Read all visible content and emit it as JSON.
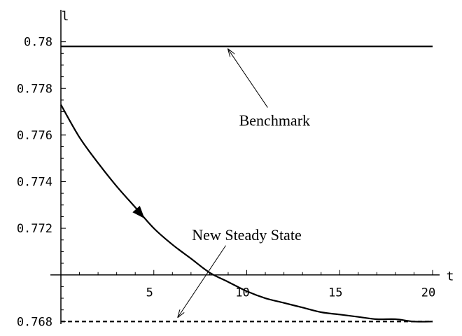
{
  "chart_data": {
    "type": "line",
    "xlabel": "t",
    "ylabel": "l",
    "xlim": [
      0,
      20
    ],
    "ylim": [
      0.768,
      0.78
    ],
    "x_axis_crosses_y": 0.77,
    "x_ticks": [
      {
        "value": 5,
        "label": "5"
      },
      {
        "value": 10,
        "label": "10"
      },
      {
        "value": 15,
        "label": "15"
      },
      {
        "value": 20,
        "label": "20"
      }
    ],
    "y_ticks": [
      {
        "value": 0.768,
        "label": "0.768"
      },
      {
        "value": 0.772,
        "label": "0.772"
      },
      {
        "value": 0.774,
        "label": "0.774"
      },
      {
        "value": 0.776,
        "label": "0.776"
      },
      {
        "value": 0.778,
        "label": "0.778"
      },
      {
        "value": 0.78,
        "label": "0.78"
      }
    ],
    "series": [
      {
        "style": "solid",
        "x": [
          0,
          1,
          2,
          3,
          4,
          5,
          6,
          7,
          8,
          9,
          10,
          11,
          12,
          13,
          14,
          15,
          16,
          17,
          18,
          19,
          20
        ],
        "y": [
          0.7773,
          0.7759,
          0.7748,
          0.7738,
          0.7729,
          0.772,
          0.7713,
          0.7707,
          0.7701,
          0.7697,
          0.7693,
          0.769,
          0.7688,
          0.7686,
          0.7684,
          0.7683,
          0.7682,
          0.7681,
          0.7681,
          0.768,
          0.768
        ]
      },
      {
        "style": "solid",
        "x": [
          0,
          20
        ],
        "y": [
          0.7798,
          0.7798
        ]
      },
      {
        "style": "dashed",
        "x": [
          0,
          20
        ],
        "y": [
          0.768,
          0.768
        ]
      }
    ],
    "direction_arrow": {
      "x": 4.3,
      "y": 0.7726
    },
    "annotations": [
      {
        "text": "Benchmark",
        "label_x": 11.5,
        "label_y": 0.7764,
        "arrow_to_x": 9.0,
        "arrow_to_y": 0.7798
      },
      {
        "text": "New Steady State",
        "label_x": 10.0,
        "label_y": 0.7715,
        "arrow_to_x": 6.3,
        "arrow_to_y": 0.7681
      }
    ]
  }
}
